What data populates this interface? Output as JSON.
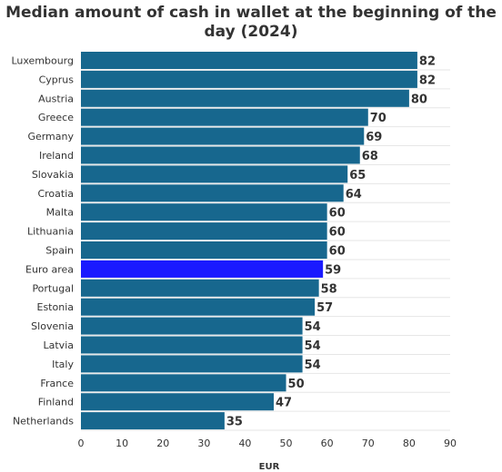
{
  "chart_data": {
    "type": "bar",
    "orientation": "horizontal",
    "title_lines": [
      "Median amount of cash in wallet at the beginning of the",
      "day (2024)"
    ],
    "xlabel": "EUR",
    "ylabel": "",
    "xlim": [
      0,
      90
    ],
    "xticks": [
      0,
      10,
      20,
      30,
      40,
      50,
      60,
      70,
      80,
      90
    ],
    "grid": true,
    "legend": "none",
    "categories": [
      "Luxembourg",
      "Cyprus",
      "Austria",
      "Greece",
      "Germany",
      "Ireland",
      "Slovakia",
      "Croatia",
      "Malta",
      "Lithuania",
      "Spain",
      "Euro area",
      "Portugal",
      "Estonia",
      "Slovenia",
      "Latvia",
      "Italy",
      "France",
      "Finland",
      "Netherlands"
    ],
    "values": [
      82,
      82,
      80,
      70,
      69,
      68,
      65,
      64,
      60,
      60,
      60,
      59,
      58,
      57,
      54,
      54,
      54,
      50,
      47,
      35
    ],
    "highlight": "Euro area",
    "colors": {
      "bar": "#17678e",
      "highlight": "#1a1aff",
      "grid": "#e6e6e6",
      "text": "#333333"
    }
  }
}
